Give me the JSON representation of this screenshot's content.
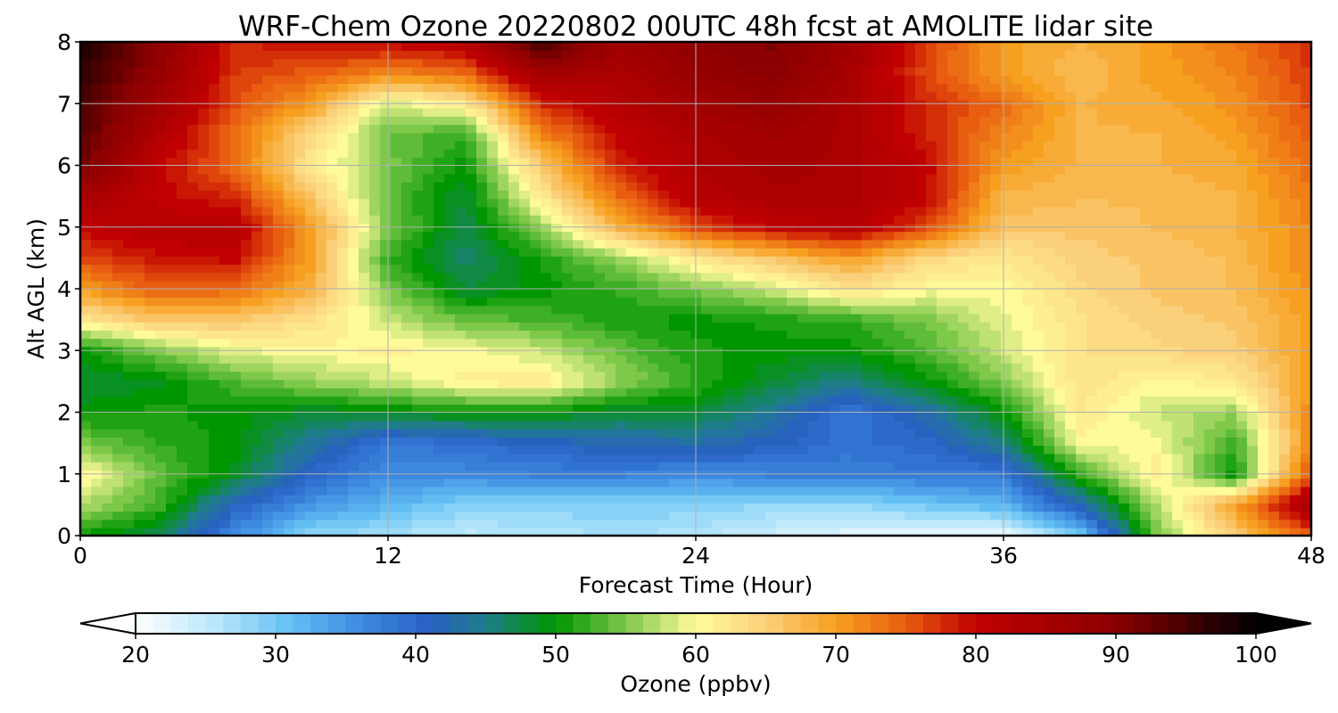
{
  "chart_data": {
    "type": "heatmap",
    "subtype": "filled-contour",
    "title": "WRF-Chem Ozone  20220802 00UTC 48h fcst at AMOLITE lidar site",
    "xlabel": "Forecast Time (Hour)",
    "ylabel": "Alt AGL (km)",
    "xlim": [
      0,
      48
    ],
    "ylim": [
      0,
      8
    ],
    "xticks": [
      "0",
      "12",
      "24",
      "36",
      "48"
    ],
    "yticks": [
      "0",
      "1",
      "2",
      "3",
      "4",
      "5",
      "6",
      "7",
      "8"
    ],
    "grid": true,
    "x": [
      0,
      3,
      6,
      9,
      12,
      15,
      18,
      21,
      24,
      27,
      30,
      33,
      36,
      39,
      42,
      45,
      48
    ],
    "y": [
      0,
      0.5,
      1,
      1.5,
      2,
      2.5,
      3,
      3.5,
      4,
      4.5,
      5,
      5.5,
      6,
      6.5,
      7,
      7.5,
      8
    ],
    "z": [
      [
        50,
        47,
        36,
        28,
        27,
        25,
        26,
        27,
        26,
        24,
        22,
        22,
        21,
        30,
        55,
        65,
        75
      ],
      [
        57,
        53,
        41,
        35,
        32,
        29,
        29,
        29,
        29,
        28,
        28,
        30,
        32,
        42,
        57,
        70,
        85
      ],
      [
        61,
        54,
        49,
        40,
        36,
        36,
        37,
        37,
        36,
        37,
        37,
        38,
        38,
        52,
        62,
        50,
        76
      ],
      [
        55,
        52,
        50,
        44,
        38,
        39,
        41,
        42,
        43,
        41,
        39,
        40,
        45,
        60,
        60,
        52,
        72
      ],
      [
        50,
        51,
        50,
        48,
        49,
        50,
        50,
        48,
        48,
        44,
        38,
        43,
        50,
        62,
        58,
        56,
        72
      ],
      [
        48,
        49,
        53,
        56,
        58,
        61,
        62,
        56,
        52,
        48,
        45,
        50,
        55,
        63,
        60,
        62,
        70
      ],
      [
        50,
        55,
        59,
        60,
        61,
        60,
        58,
        54,
        51,
        50,
        50,
        53,
        58,
        63,
        64,
        65,
        70
      ],
      [
        62,
        66,
        66,
        63,
        58,
        54,
        53,
        51,
        50,
        51,
        52,
        55,
        59,
        63,
        65,
        66,
        70
      ],
      [
        70,
        75,
        74,
        68,
        55,
        48,
        50,
        52,
        55,
        58,
        63,
        60,
        60,
        64,
        66,
        67,
        71
      ],
      [
        76,
        79,
        80,
        70,
        52,
        46,
        51,
        56,
        62,
        66,
        70,
        64,
        62,
        65,
        66,
        67,
        72
      ],
      [
        80,
        82,
        82,
        70,
        55,
        47,
        56,
        68,
        76,
        80,
        82,
        76,
        66,
        66,
        67,
        68,
        72
      ],
      [
        85,
        80,
        78,
        66,
        54,
        48,
        62,
        74,
        82,
        84,
        84,
        80,
        68,
        67,
        67,
        68,
        73
      ],
      [
        92,
        80,
        74,
        62,
        55,
        50,
        66,
        78,
        83,
        85,
        84,
        80,
        70,
        68,
        68,
        69,
        74
      ],
      [
        94,
        83,
        74,
        64,
        54,
        52,
        72,
        80,
        84,
        86,
        84,
        78,
        72,
        68,
        68,
        70,
        75
      ],
      [
        95,
        86,
        76,
        70,
        58,
        62,
        78,
        82,
        86,
        88,
        84,
        78,
        74,
        68,
        69,
        71,
        76
      ],
      [
        97,
        88,
        77,
        75,
        72,
        74,
        86,
        84,
        88,
        90,
        85,
        76,
        70,
        67,
        70,
        72,
        77
      ],
      [
        98,
        90,
        78,
        79,
        80,
        82,
        96,
        86,
        89,
        91,
        86,
        77,
        70,
        68,
        70,
        73,
        78
      ]
    ],
    "colorbar": {
      "label": "Ozone  (ppbv)",
      "min": 20,
      "max": 100,
      "extend": "both",
      "ticks": [
        "20",
        "30",
        "40",
        "50",
        "60",
        "70",
        "80",
        "90",
        "100"
      ],
      "stops": [
        {
          "v": 20,
          "c": "#ffffff"
        },
        {
          "v": 26,
          "c": "#b5e6fb"
        },
        {
          "v": 31,
          "c": "#64c0f4"
        },
        {
          "v": 36,
          "c": "#3d8be0"
        },
        {
          "v": 41,
          "c": "#2860c2"
        },
        {
          "v": 45,
          "c": "#1f7d8a"
        },
        {
          "v": 50,
          "c": "#009600"
        },
        {
          "v": 55,
          "c": "#7ec84a"
        },
        {
          "v": 60,
          "c": "#fffb9a"
        },
        {
          "v": 65,
          "c": "#fbd07a"
        },
        {
          "v": 70,
          "c": "#f7a020"
        },
        {
          "v": 75,
          "c": "#e85d10"
        },
        {
          "v": 80,
          "c": "#c00000"
        },
        {
          "v": 90,
          "c": "#8b0000"
        },
        {
          "v": 100,
          "c": "#000000"
        }
      ]
    }
  }
}
